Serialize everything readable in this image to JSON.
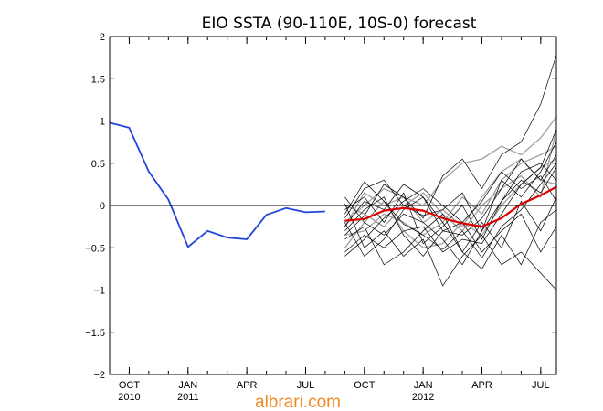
{
  "chart_data": {
    "type": "line",
    "title": "EIO SSTA (90-110E, 10S-0) forecast",
    "xlabel": "",
    "ylabel": "",
    "ylim": [
      -2,
      2
    ],
    "y_ticks": [
      -2,
      -1.5,
      -1,
      -0.5,
      0,
      0.5,
      1,
      1.5,
      2
    ],
    "y_tick_labels": [
      "−2",
      "−1.5",
      "−1",
      "−0.5",
      "0",
      "0.5",
      "1",
      "1.5",
      "2"
    ],
    "x_months_index_range": [
      0,
      22.8
    ],
    "x_ticks": [
      {
        "month_index": 1,
        "label": "OCT",
        "year": "2010"
      },
      {
        "month_index": 4,
        "label": "JAN",
        "year": "2011"
      },
      {
        "month_index": 7,
        "label": "APR",
        "year": ""
      },
      {
        "month_index": 10,
        "label": "JUL",
        "year": ""
      },
      {
        "month_index": 13,
        "label": "OCT",
        "year": ""
      },
      {
        "month_index": 16,
        "label": "JAN",
        "year": "2012"
      },
      {
        "month_index": 19,
        "label": "APR",
        "year": ""
      },
      {
        "month_index": 22,
        "label": "JUL",
        "year": ""
      }
    ],
    "zero_line": true,
    "series": [
      {
        "role": "observed",
        "color": "#2244dd",
        "x": [
          0,
          1,
          2,
          3,
          4,
          5,
          6,
          7,
          8,
          9,
          10,
          11
        ],
        "values": [
          0.98,
          0.92,
          0.4,
          0.07,
          -0.49,
          -0.3,
          -0.38,
          -0.4,
          -0.11,
          -0.03,
          -0.08,
          -0.07
        ]
      },
      {
        "role": "ensemble-mean",
        "color": "#dd0000",
        "x": [
          12,
          13,
          14,
          15,
          16,
          17,
          18,
          19,
          20,
          21,
          22,
          22.8
        ],
        "values": [
          -0.18,
          -0.16,
          -0.06,
          -0.03,
          -0.06,
          -0.15,
          -0.21,
          -0.25,
          -0.15,
          0.02,
          0.12,
          0.22
        ]
      }
    ],
    "ensemble_members": {
      "x": [
        12,
        13,
        14,
        15,
        16,
        17,
        18,
        19,
        20,
        21,
        22,
        22.8
      ],
      "black": [
        [
          -0.1,
          0.28,
          0.05,
          -0.22,
          -0.35,
          -0.52,
          -0.3,
          -0.62,
          -0.25,
          -0.05,
          0.25,
          0.5
        ],
        [
          -0.35,
          -0.12,
          0.25,
          0.1,
          -0.15,
          0.35,
          0.55,
          0.2,
          0.6,
          0.75,
          1.2,
          1.78
        ],
        [
          -0.55,
          -0.35,
          -0.5,
          -0.3,
          -0.25,
          -0.55,
          -0.4,
          -0.45,
          -0.1,
          0.25,
          0.45,
          0.9
        ],
        [
          -0.2,
          -0.6,
          -0.4,
          -0.05,
          0.1,
          -0.2,
          -0.55,
          -0.75,
          -0.35,
          -0.7,
          -0.2,
          -0.05
        ],
        [
          0.02,
          -0.5,
          -0.3,
          -0.6,
          -0.4,
          -0.95,
          -0.6,
          -0.35,
          -0.7,
          -0.55,
          -0.8,
          -1.0
        ],
        [
          -0.15,
          0.2,
          0.3,
          0.0,
          -0.12,
          -0.05,
          0.15,
          -0.3,
          0.3,
          0.1,
          0.4,
          0.75
        ],
        [
          -0.4,
          -0.25,
          -0.7,
          -0.55,
          -0.3,
          -0.1,
          -0.55,
          -0.2,
          -0.5,
          0.05,
          -0.3,
          0.1
        ],
        [
          -0.05,
          0.1,
          -0.2,
          0.15,
          -0.45,
          -0.25,
          0.0,
          -0.4,
          0.05,
          0.4,
          0.5,
          0.3
        ],
        [
          -0.3,
          -0.05,
          0.1,
          -0.35,
          -0.6,
          -0.3,
          -0.35,
          -0.15,
          0.2,
          0.55,
          0.3,
          0.6
        ],
        [
          -0.6,
          -0.4,
          -0.15,
          0.05,
          0.2,
          0.0,
          -0.2,
          -0.55,
          -0.3,
          -0.1,
          -0.55,
          -0.25
        ],
        [
          0.1,
          -0.2,
          -0.35,
          -0.1,
          -0.2,
          -0.4,
          -0.7,
          -0.3,
          0.05,
          0.3,
          0.15,
          0.45
        ],
        [
          -0.25,
          0.05,
          -0.05,
          0.25,
          0.1,
          -0.3,
          -0.2,
          0.05,
          0.4,
          0.2,
          0.35,
          0.05
        ]
      ],
      "gray": [
        [
          -0.2,
          0.0,
          0.2,
          0.1,
          0.0,
          0.3,
          0.5,
          0.55,
          0.7,
          0.6,
          0.8,
          1.05
        ],
        [
          -0.35,
          -0.3,
          -0.1,
          -0.2,
          -0.35,
          -0.2,
          0.1,
          -0.1,
          0.3,
          0.5,
          0.6,
          0.7
        ],
        [
          0.0,
          -0.1,
          -0.25,
          0.0,
          0.15,
          -0.1,
          -0.3,
          0.0,
          0.2,
          0.35,
          0.1,
          0.9
        ],
        [
          -0.5,
          -0.2,
          0.05,
          -0.3,
          -0.5,
          -0.45,
          -0.2,
          -0.35,
          0.0,
          0.25,
          0.45,
          0.55
        ],
        [
          -0.25,
          0.15,
          0.0,
          0.1,
          -0.2,
          -0.05,
          -0.25,
          0.1,
          0.4,
          0.55,
          0.3,
          0.25
        ]
      ]
    }
  },
  "watermark": "albrari.com",
  "colors": {
    "observed": "#2244dd",
    "ensemble_mean": "#dd0000",
    "member_black": "#000000",
    "member_gray": "#a0a0a0",
    "watermark": "#f08a24"
  }
}
